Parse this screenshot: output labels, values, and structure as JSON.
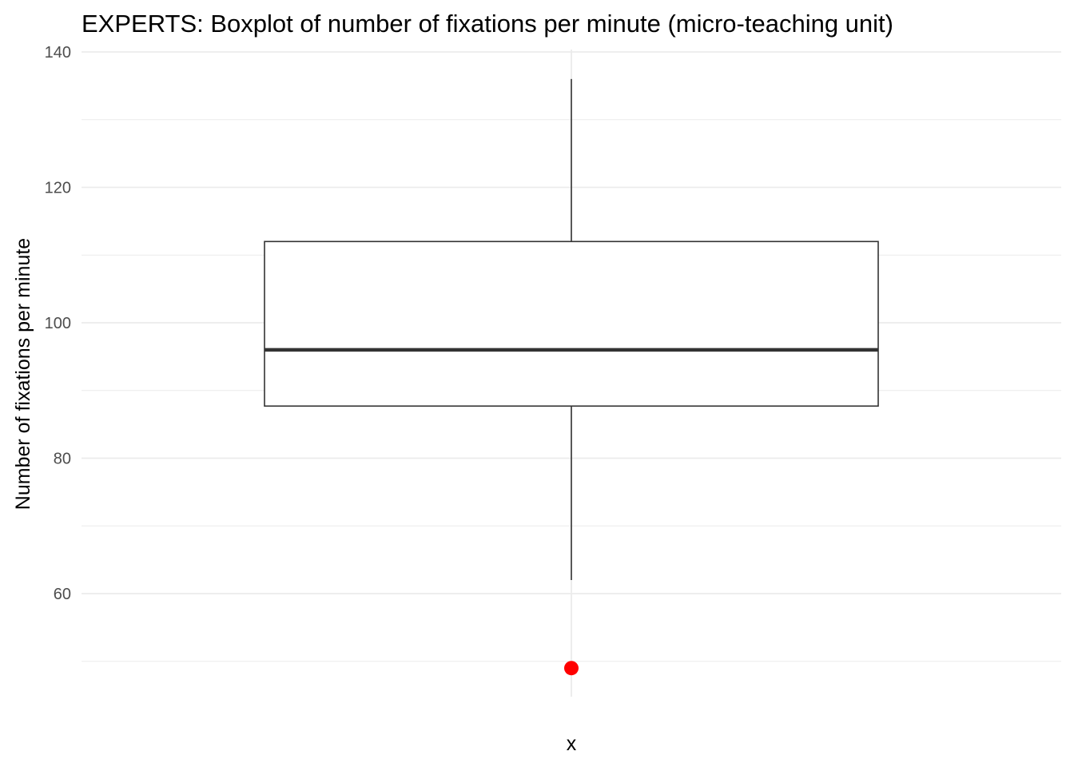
{
  "chart_data": {
    "type": "boxplot",
    "title": "EXPERTS: Boxplot of number of fixations per minute (micro-teaching unit)",
    "xlabel": "x",
    "ylabel": "Number of fixations per minute",
    "ylim": [
      44,
      140
    ],
    "yticks": [
      60,
      80,
      100,
      120,
      140
    ],
    "grid": true,
    "box": {
      "min": 62,
      "q1": 87.7,
      "median": 96,
      "q3": 112,
      "max": 136
    },
    "outliers": [
      49
    ],
    "colors": {
      "outlier": "#ff0000",
      "box_stroke": "#333333",
      "grid": "#ebebeb"
    }
  }
}
